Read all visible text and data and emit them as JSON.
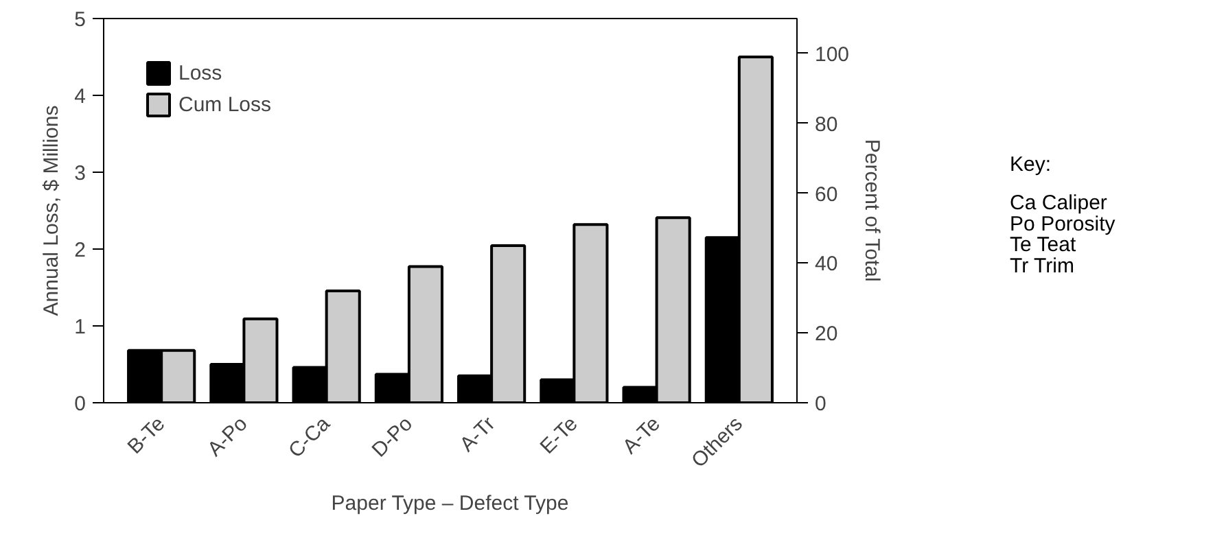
{
  "chart_data": {
    "type": "bar",
    "xlabel": "Paper Type – Defect Type",
    "ylabel": "Annual Loss, $ Millions",
    "y2label": "Percent of Total",
    "categories": [
      "B-Te",
      "A-Po",
      "C-Ca",
      "D-Po",
      "A-Tr",
      "E-Te",
      "A-Te",
      "Others"
    ],
    "series": [
      {
        "name": "Loss",
        "color": "#000000",
        "values": [
          0.68,
          0.5,
          0.46,
          0.37,
          0.35,
          0.3,
          0.2,
          2.15
        ]
      },
      {
        "name": "Cum Loss",
        "color": "#cccccc",
        "axis": "y2",
        "values": [
          15,
          24,
          32,
          39,
          45,
          51,
          53,
          99
        ]
      }
    ],
    "ylim": [
      0,
      5
    ],
    "yticks": [
      0,
      1,
      2,
      3,
      4,
      5
    ],
    "y2lim": [
      0,
      110
    ],
    "y2ticks": [
      0,
      20,
      40,
      60,
      80,
      100
    ],
    "grid": false,
    "legend": "top left",
    "annotations": [
      "Key:",
      "Ca   Caliper",
      "Po   Porosity",
      "Te   Teat",
      "Tr    Trim"
    ]
  }
}
